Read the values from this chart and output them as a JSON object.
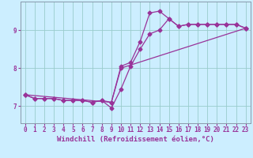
{
  "xlabel": "Windchill (Refroidissement éolien,°C)",
  "bg_color": "#cceeff",
  "grid_color": "#99cccc",
  "line_color": "#993399",
  "xlim": [
    -0.5,
    23.5
  ],
  "ylim": [
    6.55,
    9.75
  ],
  "xticks": [
    0,
    1,
    2,
    3,
    4,
    5,
    6,
    7,
    8,
    9,
    10,
    11,
    12,
    13,
    14,
    15,
    16,
    17,
    18,
    19,
    20,
    21,
    22,
    23
  ],
  "yticks": [
    7,
    8,
    9
  ],
  "line1_x": [
    0,
    1,
    2,
    3,
    4,
    5,
    6,
    7,
    8,
    9,
    10,
    11,
    12,
    13,
    14,
    15,
    16,
    17,
    18,
    19,
    20,
    21,
    22,
    23
  ],
  "line1_y": [
    7.3,
    7.2,
    7.2,
    7.2,
    7.15,
    7.15,
    7.15,
    7.1,
    7.15,
    7.1,
    8.05,
    8.15,
    8.7,
    9.45,
    9.5,
    9.3,
    9.1,
    9.15,
    9.15,
    9.15,
    9.15,
    9.15,
    9.15,
    9.05
  ],
  "line2_x": [
    0,
    1,
    2,
    3,
    4,
    5,
    6,
    7,
    8,
    9,
    10,
    11,
    12,
    13,
    14,
    15,
    16,
    17,
    18,
    19,
    20,
    21,
    22,
    23
  ],
  "line2_y": [
    7.3,
    7.2,
    7.2,
    7.2,
    7.15,
    7.15,
    7.15,
    7.1,
    7.15,
    6.95,
    7.45,
    8.05,
    8.5,
    8.9,
    9.0,
    9.3,
    9.1,
    9.15,
    9.15,
    9.15,
    9.15,
    9.15,
    9.15,
    9.05
  ],
  "line3_x": [
    0,
    9,
    10,
    23
  ],
  "line3_y": [
    7.3,
    7.1,
    8.0,
    9.05
  ],
  "markersize": 2.5,
  "linewidth": 0.9,
  "tick_fontsize": 5.5,
  "label_fontsize": 6.5,
  "font_color": "#993399"
}
